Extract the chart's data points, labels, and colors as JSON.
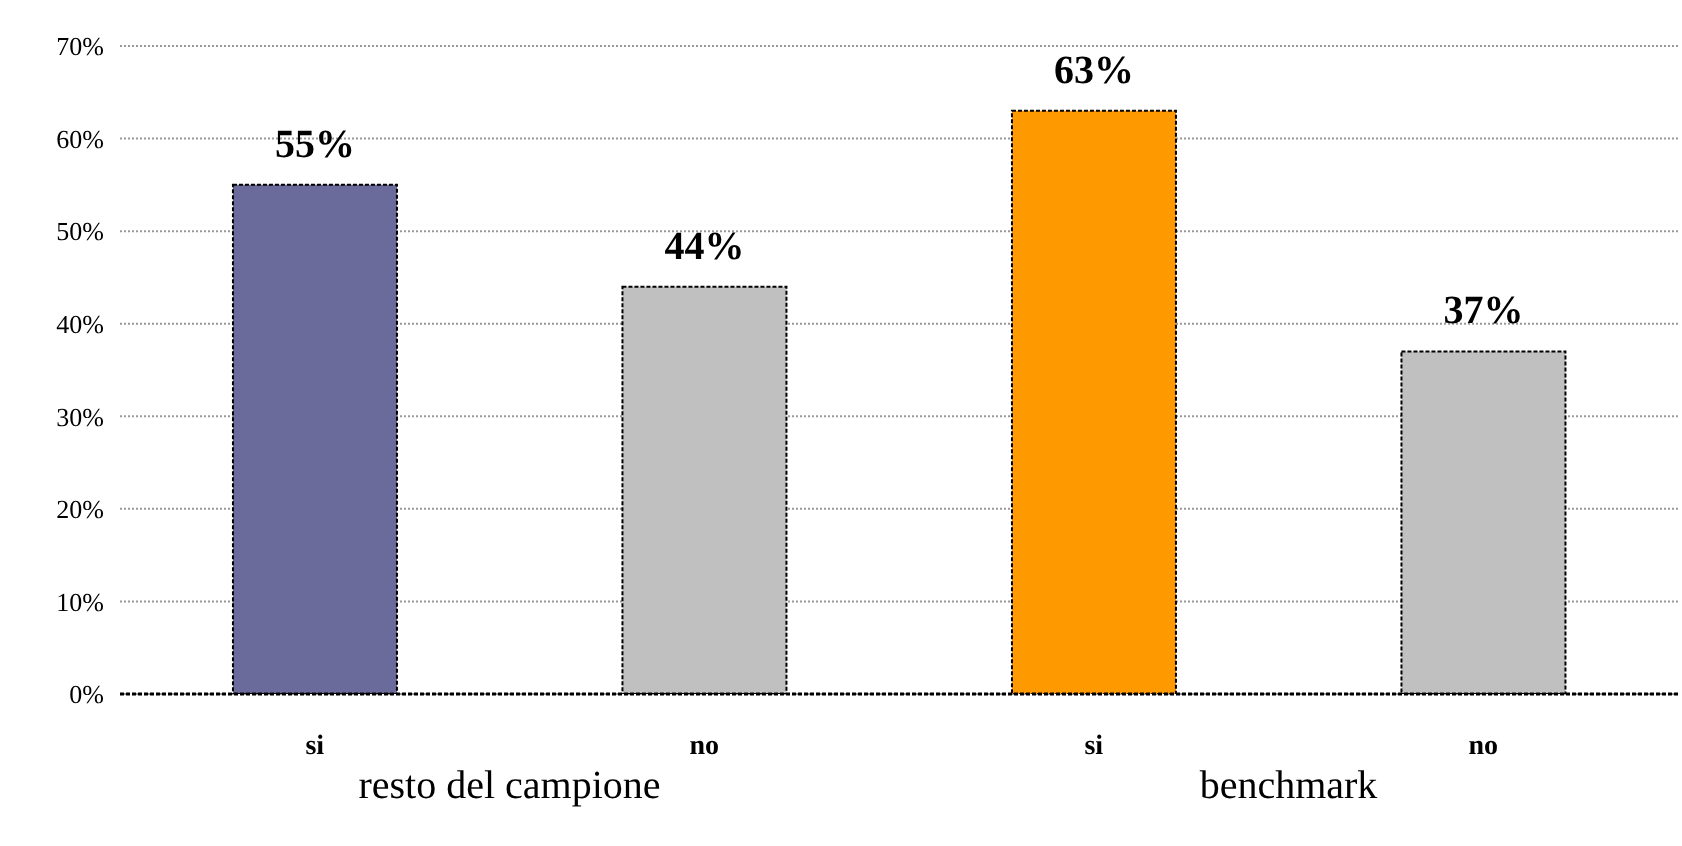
{
  "chart_data": {
    "type": "bar",
    "categories": [
      "si",
      "no",
      "si",
      "no"
    ],
    "values": [
      55,
      44,
      63,
      37
    ],
    "colors": [
      "#6b6b9b",
      "#c0c0c0",
      "#ff9900",
      "#c0c0c0"
    ],
    "value_labels": [
      "55%",
      "44%",
      "63%",
      "37%"
    ],
    "ylim": [
      0,
      70
    ],
    "yticks": [
      {
        "value": 0,
        "label": "0%"
      },
      {
        "value": 10,
        "label": "10%"
      },
      {
        "value": 20,
        "label": "20%"
      },
      {
        "value": 30,
        "label": "30%"
      },
      {
        "value": 40,
        "label": "40%"
      },
      {
        "value": 50,
        "label": "50%"
      },
      {
        "value": 60,
        "label": "60%"
      },
      {
        "value": 70,
        "label": "70%"
      }
    ],
    "grid": "y",
    "annotations": [
      "resto del campione",
      "benchmark"
    ]
  }
}
